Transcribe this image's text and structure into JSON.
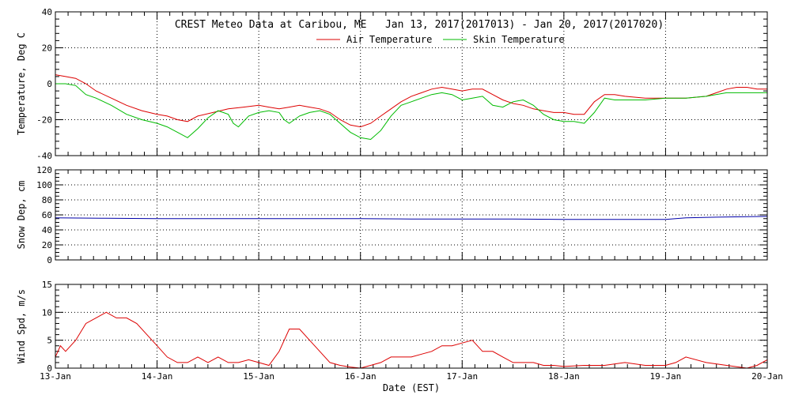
{
  "chart_data": [
    {
      "type": "line",
      "panel": "temperature",
      "title": "CREST Meteo Data at Caribou, ME   Jan 13, 2017(2017013) - Jan 20, 2017(2017020)",
      "ylabel": "Temperature, Deg C",
      "xlabel": "",
      "ylim": [
        -40,
        40
      ],
      "yticks": [
        "-40",
        "-20",
        "0",
        "20",
        "40"
      ],
      "ytick_values": [
        -40,
        -20,
        0,
        20,
        40
      ],
      "xlim": [
        0,
        7
      ],
      "grid": true,
      "legend": "top-center",
      "x_tick_labels": [
        "13-Jan",
        "14-Jan",
        "15-Jan",
        "16-Jan",
        "17-Jan",
        "18-Jan",
        "19-Jan",
        "20-Jan"
      ],
      "series": [
        {
          "name": "Air Temperature",
          "color": "#dd0000",
          "x": [
            0,
            0.1,
            0.2,
            0.3,
            0.4,
            0.55,
            0.7,
            0.85,
            1.0,
            1.1,
            1.2,
            1.3,
            1.4,
            1.55,
            1.7,
            1.85,
            2.0,
            2.1,
            2.2,
            2.3,
            2.4,
            2.5,
            2.6,
            2.7,
            2.8,
            2.9,
            3.0,
            3.1,
            3.2,
            3.3,
            3.4,
            3.5,
            3.6,
            3.7,
            3.8,
            3.9,
            4.0,
            4.1,
            4.2,
            4.3,
            4.4,
            4.5,
            4.6,
            4.7,
            4.8,
            4.9,
            5.0,
            5.1,
            5.2,
            5.3,
            5.4,
            5.5,
            5.6,
            5.8,
            6.0,
            6.2,
            6.4,
            6.5,
            6.6,
            6.7,
            6.8,
            6.9,
            7.0
          ],
          "y": [
            5,
            4,
            3,
            0,
            -4,
            -8,
            -12,
            -15,
            -17,
            -18,
            -20,
            -21,
            -18,
            -16,
            -14,
            -13,
            -12,
            -13,
            -14,
            -13,
            -12,
            -13,
            -14,
            -16,
            -20,
            -23,
            -24,
            -22,
            -18,
            -14,
            -10,
            -7,
            -5,
            -3,
            -2,
            -3,
            -4,
            -3,
            -3,
            -6,
            -9,
            -11,
            -12,
            -14,
            -15,
            -16,
            -16,
            -17,
            -17,
            -10,
            -6,
            -6,
            -7,
            -8,
            -8,
            -8,
            -7,
            -5,
            -3,
            -2,
            -2,
            -3,
            -3
          ]
        },
        {
          "name": "Skin Temperature",
          "color": "#00bb00",
          "x": [
            0,
            0.1,
            0.2,
            0.3,
            0.4,
            0.55,
            0.7,
            0.85,
            1.0,
            1.1,
            1.2,
            1.3,
            1.4,
            1.5,
            1.6,
            1.7,
            1.75,
            1.8,
            1.9,
            2.0,
            2.1,
            2.2,
            2.25,
            2.3,
            2.4,
            2.5,
            2.6,
            2.7,
            2.8,
            2.9,
            3.0,
            3.1,
            3.2,
            3.3,
            3.4,
            3.5,
            3.6,
            3.7,
            3.8,
            3.9,
            4.0,
            4.1,
            4.2,
            4.3,
            4.4,
            4.5,
            4.6,
            4.7,
            4.8,
            4.9,
            5.0,
            5.1,
            5.2,
            5.3,
            5.4,
            5.5,
            5.6,
            5.8,
            6.0,
            6.2,
            6.4,
            6.6,
            6.8,
            7.0
          ],
          "y": [
            0,
            0,
            -1,
            -6,
            -8,
            -12,
            -17,
            -20,
            -22,
            -24,
            -27,
            -30,
            -25,
            -19,
            -15,
            -17,
            -22,
            -24,
            -18,
            -16,
            -15,
            -16,
            -20,
            -22,
            -18,
            -16,
            -15,
            -17,
            -22,
            -27,
            -30,
            -31,
            -26,
            -18,
            -12,
            -10,
            -8,
            -6,
            -5,
            -6,
            -9,
            -8,
            -7,
            -12,
            -13,
            -10,
            -9,
            -12,
            -17,
            -20,
            -21,
            -21,
            -22,
            -16,
            -8,
            -9,
            -9,
            -9,
            -8,
            -8,
            -7,
            -5,
            -5,
            -5
          ]
        }
      ]
    },
    {
      "type": "line",
      "panel": "snow",
      "title": "",
      "ylabel": "Snow Dep, cm",
      "xlabel": "",
      "ylim": [
        0,
        120
      ],
      "yticks": [
        "0",
        "20",
        "40",
        "60",
        "80",
        "100",
        "120"
      ],
      "ytick_values": [
        0,
        20,
        40,
        60,
        80,
        100,
        120
      ],
      "xlim": [
        0,
        7
      ],
      "grid": true,
      "series": [
        {
          "name": "",
          "color": "#0000aa",
          "x": [
            0,
            0.5,
            1.0,
            1.5,
            2.0,
            2.5,
            3.0,
            3.5,
            4.0,
            4.5,
            5.0,
            5.5,
            6.0,
            6.2,
            6.5,
            7.0
          ],
          "y": [
            56,
            55.5,
            55,
            55,
            55,
            55,
            55,
            54.5,
            54.5,
            54.5,
            54,
            54,
            54,
            56,
            57,
            58
          ]
        }
      ]
    },
    {
      "type": "line",
      "panel": "wind",
      "title": "",
      "ylabel": "Wind Spd, m/s",
      "xlabel": "Date (EST)",
      "ylim": [
        0,
        15
      ],
      "yticks": [
        "0",
        "5",
        "10",
        "15"
      ],
      "ytick_values": [
        0,
        5,
        10,
        15
      ],
      "xlim": [
        0,
        7
      ],
      "grid": true,
      "x_tick_labels": [
        "13-Jan",
        "14-Jan",
        "15-Jan",
        "16-Jan",
        "17-Jan",
        "18-Jan",
        "19-Jan",
        "20-Jan"
      ],
      "series": [
        {
          "name": "",
          "color": "#dd0000",
          "x": [
            0,
            0.05,
            0.1,
            0.2,
            0.3,
            0.4,
            0.5,
            0.6,
            0.7,
            0.8,
            0.9,
            1.0,
            1.1,
            1.2,
            1.3,
            1.4,
            1.5,
            1.6,
            1.7,
            1.8,
            1.9,
            2.0,
            2.1,
            2.2,
            2.3,
            2.4,
            2.5,
            2.6,
            2.7,
            2.8,
            2.9,
            3.0,
            3.1,
            3.2,
            3.3,
            3.4,
            3.5,
            3.6,
            3.7,
            3.8,
            3.9,
            4.0,
            4.1,
            4.2,
            4.3,
            4.4,
            4.5,
            4.6,
            4.7,
            4.8,
            4.9,
            5.0,
            5.2,
            5.4,
            5.6,
            5.8,
            6.0,
            6.1,
            6.2,
            6.4,
            6.6,
            6.8,
            6.9,
            7.0
          ],
          "y": [
            2,
            4,
            3,
            5,
            8,
            9,
            10,
            9,
            9,
            8,
            6,
            4,
            2,
            1,
            1,
            2,
            1,
            2,
            1,
            1,
            1.5,
            1,
            0.5,
            3,
            7,
            7,
            5,
            3,
            1,
            0.5,
            0.2,
            0,
            0.5,
            1,
            2,
            2,
            2,
            2.5,
            3,
            4,
            4,
            4.5,
            5,
            3,
            3,
            2,
            1,
            1,
            1,
            0.5,
            0.5,
            0.3,
            0.5,
            0.5,
            1,
            0.5,
            0.5,
            1,
            2,
            1,
            0.5,
            0,
            0.5,
            1.5
          ]
        }
      ]
    }
  ]
}
